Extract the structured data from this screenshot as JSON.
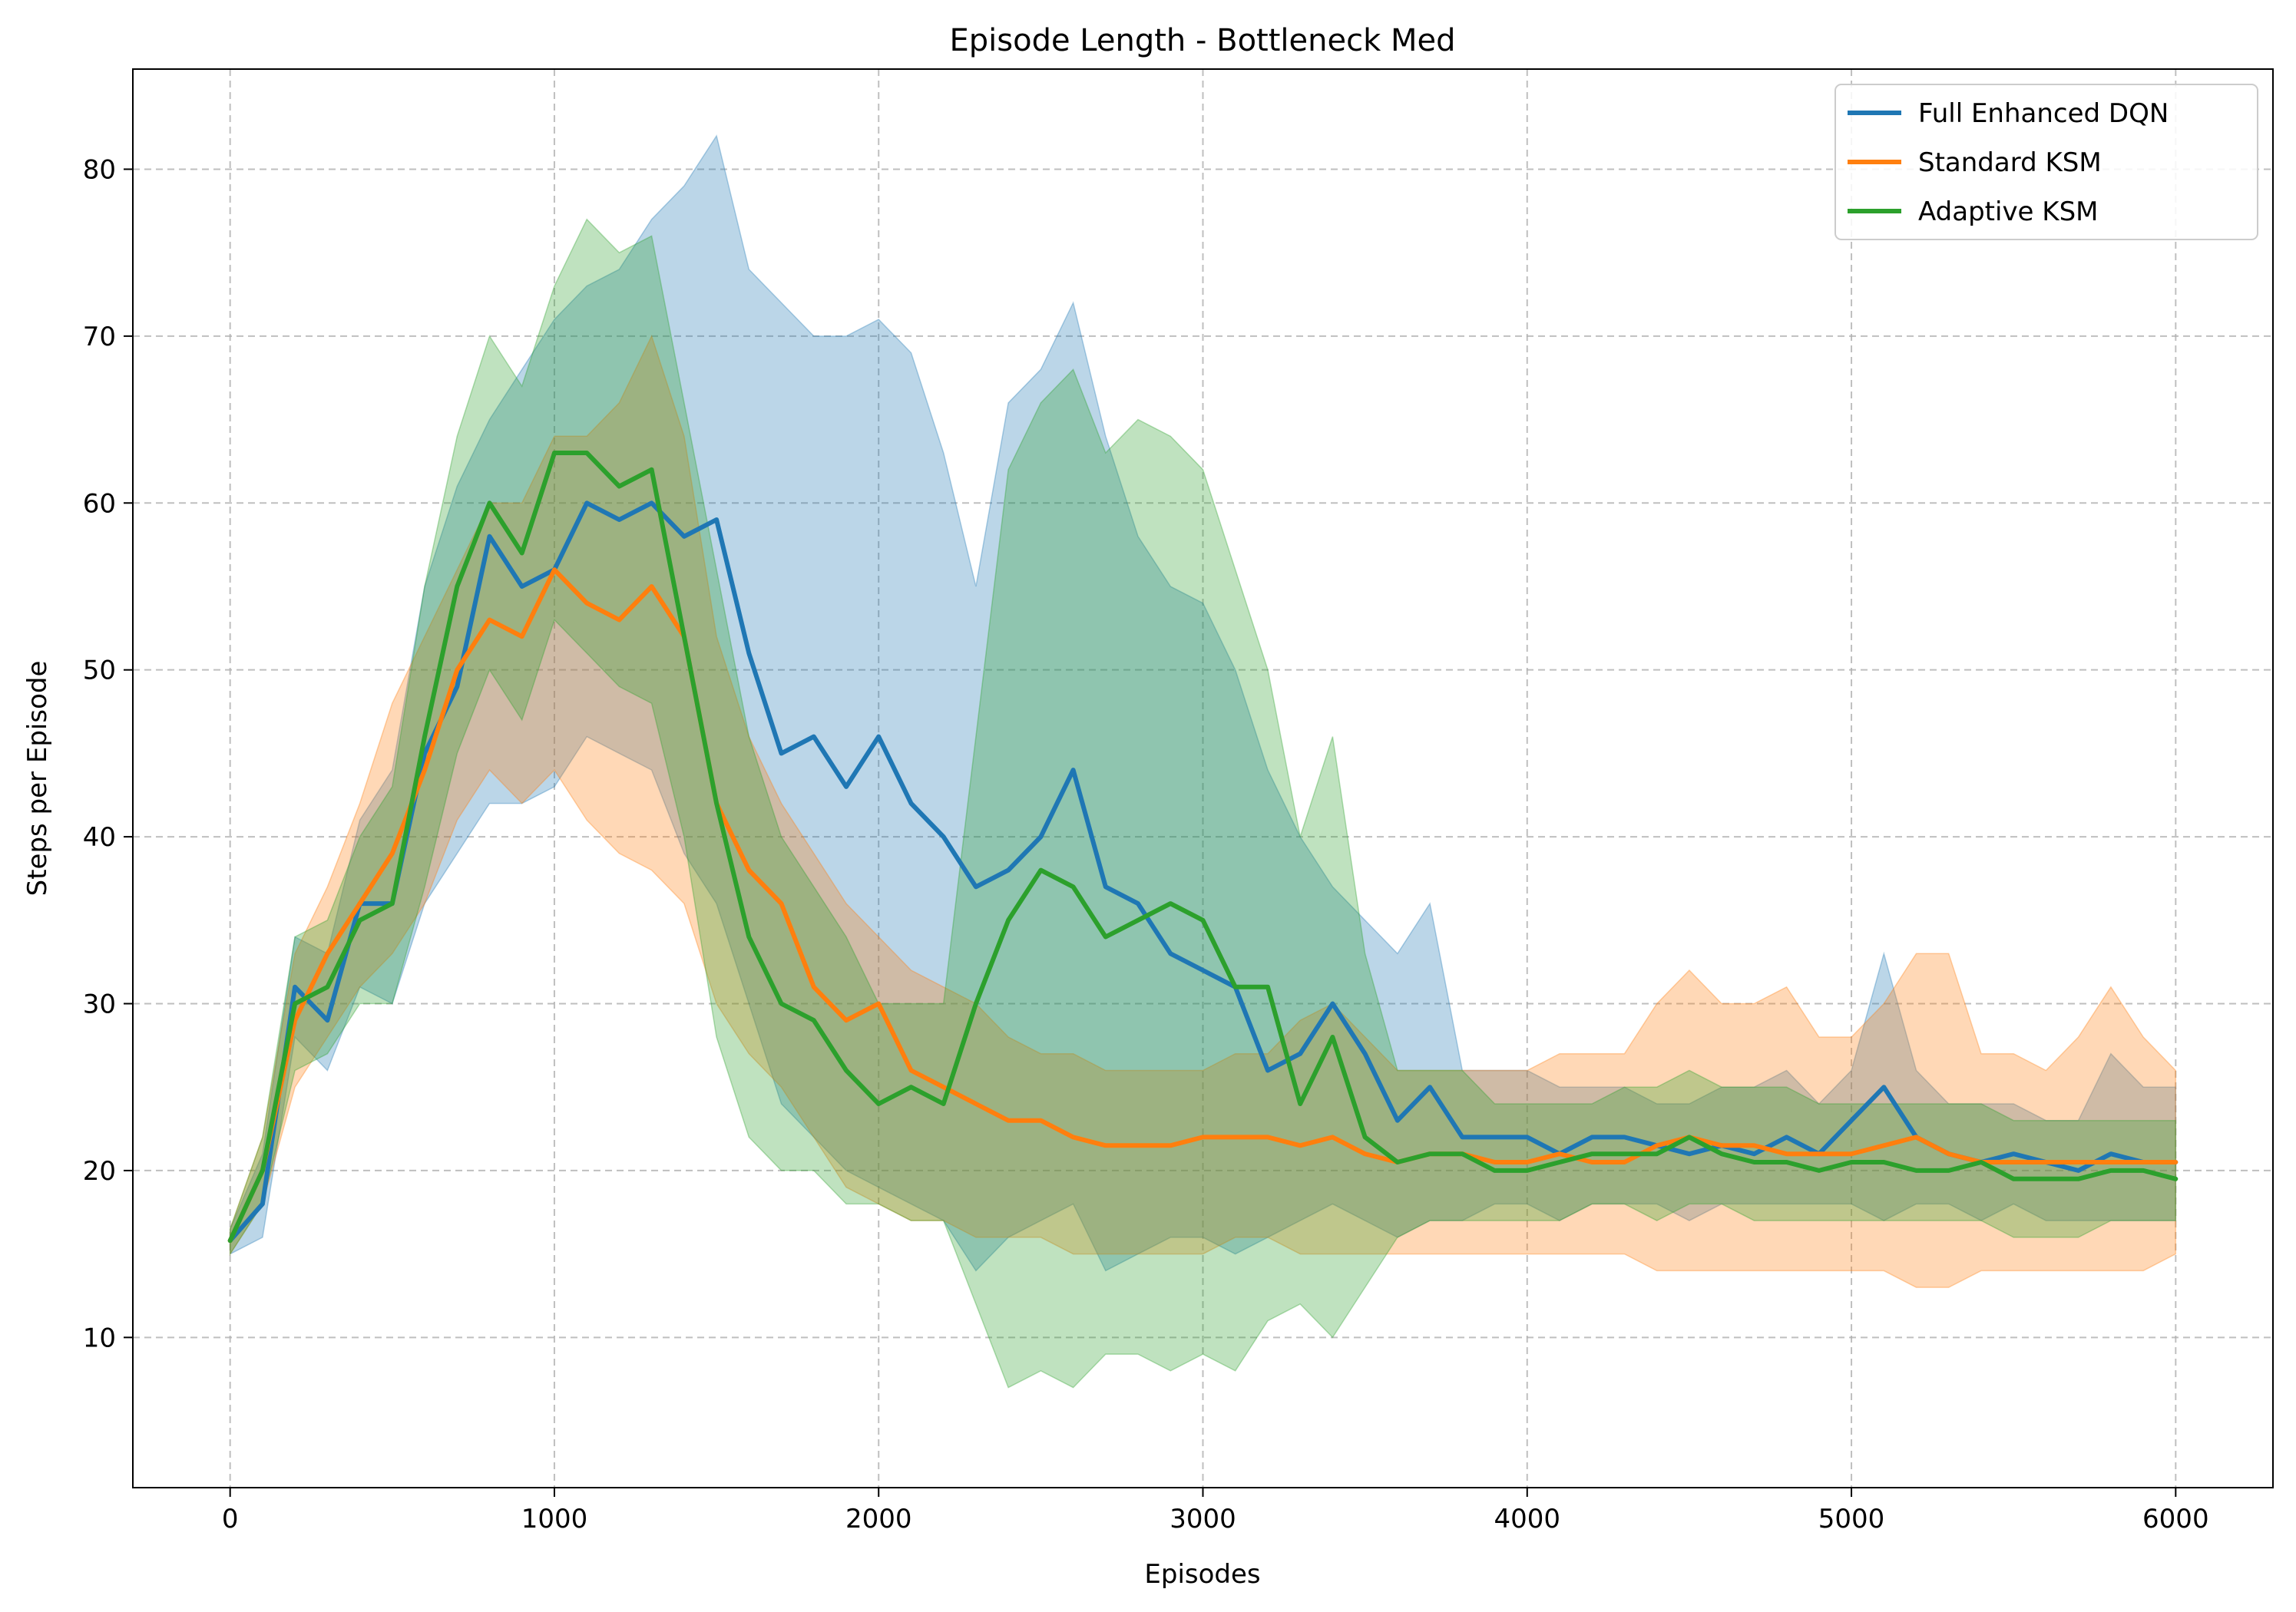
{
  "chart_data": {
    "type": "line",
    "title": "Episode Length - Bottleneck Med",
    "xlabel": "Episodes",
    "ylabel": "Steps per Episode",
    "xlim": [
      -300,
      6300
    ],
    "ylim": [
      1,
      86
    ],
    "xticks": [
      0,
      1000,
      2000,
      3000,
      4000,
      5000,
      6000
    ],
    "yticks": [
      10,
      20,
      30,
      40,
      50,
      60,
      70,
      80
    ],
    "grid": true,
    "legend_position": "top-right",
    "x": [
      0,
      100,
      200,
      300,
      400,
      500,
      600,
      700,
      800,
      900,
      1000,
      1100,
      1200,
      1300,
      1400,
      1500,
      1600,
      1700,
      1800,
      1900,
      2000,
      2100,
      2200,
      2300,
      2400,
      2500,
      2600,
      2700,
      2800,
      2900,
      3000,
      3100,
      3200,
      3300,
      3400,
      3500,
      3600,
      3700,
      3800,
      3900,
      4000,
      4100,
      4200,
      4300,
      4400,
      4500,
      4600,
      4700,
      4800,
      4900,
      5000,
      5100,
      5200,
      5300,
      5400,
      5500,
      5600,
      5700,
      5800,
      5900,
      6000
    ],
    "series": [
      {
        "name": "Full Enhanced DQN",
        "color": "#1f77b4",
        "mean": [
          15.8,
          18,
          31,
          29,
          36,
          36,
          45,
          49,
          58,
          55,
          56,
          60,
          59,
          60,
          58,
          59,
          51,
          45,
          46,
          43,
          46,
          42,
          40,
          37,
          38,
          40,
          44,
          37,
          36,
          33,
          32,
          31,
          26,
          27,
          30,
          27,
          23,
          25,
          22,
          22,
          22,
          21,
          22,
          22,
          21.5,
          21,
          21.5,
          21,
          22,
          21,
          23,
          25,
          22,
          21,
          20.5,
          21,
          20.5,
          20,
          21,
          20.5,
          20.5
        ],
        "upper": [
          16.5,
          21,
          34,
          33,
          41,
          44,
          55,
          61,
          65,
          68,
          71,
          73,
          74,
          77,
          79,
          82,
          74,
          72,
          70,
          70,
          71,
          69,
          63,
          55,
          66,
          68,
          72,
          64,
          58,
          55,
          54,
          50,
          44,
          40,
          37,
          35,
          33,
          36,
          26,
          26,
          26,
          25,
          25,
          25,
          24,
          24,
          25,
          25,
          26,
          24,
          26,
          33,
          26,
          24,
          24,
          24,
          23,
          23,
          27,
          25,
          25
        ],
        "lower": [
          15.0,
          16,
          28,
          26,
          31,
          30,
          36,
          39,
          42,
          42,
          43,
          46,
          45,
          44,
          39,
          36,
          30,
          24,
          22,
          20,
          19,
          18,
          17,
          14,
          16,
          17,
          18,
          14,
          15,
          16,
          16,
          15,
          16,
          17,
          18,
          17,
          16,
          17,
          17,
          18,
          18,
          17,
          18,
          18,
          18,
          17,
          18,
          18,
          18,
          18,
          18,
          17,
          18,
          18,
          17,
          18,
          17,
          17,
          17,
          17,
          17
        ]
      },
      {
        "name": "Standard KSM",
        "color": "#ff7f0e",
        "mean": [
          15.8,
          20,
          29,
          33,
          36,
          39,
          44,
          50,
          53,
          52,
          56,
          54,
          53,
          55,
          52,
          42,
          38,
          36,
          31,
          29,
          30,
          26,
          25,
          24,
          23,
          23,
          22,
          21.5,
          21.5,
          21.5,
          22,
          22,
          22,
          21.5,
          22,
          21,
          20.5,
          21,
          21,
          20.5,
          20.5,
          21,
          20.5,
          20.5,
          21.5,
          22,
          21.5,
          21.5,
          21,
          21,
          21,
          21.5,
          22,
          21,
          20.5,
          20.5,
          20.5,
          20.5,
          20.5,
          20.5,
          20.5
        ],
        "upper": [
          16.5,
          22,
          33,
          37,
          42,
          48,
          52,
          56,
          60,
          60,
          64,
          64,
          66,
          70,
          64,
          52,
          46,
          42,
          39,
          36,
          34,
          32,
          31,
          30,
          28,
          27,
          27,
          26,
          26,
          26,
          26,
          27,
          27,
          29,
          30,
          28,
          26,
          26,
          26,
          26,
          26,
          27,
          27,
          27,
          30,
          32,
          30,
          30,
          31,
          28,
          28,
          30,
          33,
          33,
          27,
          27,
          26,
          28,
          31,
          28,
          26
        ],
        "lower": [
          15.0,
          18,
          25,
          28,
          31,
          33,
          36,
          41,
          44,
          42,
          44,
          41,
          39,
          38,
          36,
          30,
          27,
          25,
          22,
          19,
          18,
          17,
          17,
          16,
          16,
          16,
          15,
          15,
          15,
          15,
          15,
          16,
          16,
          15,
          15,
          15,
          15,
          15,
          15,
          15,
          15,
          15,
          15,
          15,
          14,
          14,
          14,
          14,
          14,
          14,
          14,
          14,
          13,
          13,
          14,
          14,
          14,
          14,
          14,
          14,
          15
        ]
      },
      {
        "name": "Adaptive KSM",
        "color": "#2ca02c",
        "mean": [
          15.8,
          20,
          30,
          31,
          35,
          36,
          46,
          55,
          60,
          57,
          63,
          63,
          61,
          62,
          52,
          42,
          34,
          30,
          29,
          26,
          24,
          25,
          24,
          30,
          35,
          38,
          37,
          34,
          35,
          36,
          35,
          31,
          31,
          24,
          28,
          22,
          20.5,
          21,
          21,
          20,
          20,
          20.5,
          21,
          21,
          21,
          22,
          21,
          20.5,
          20.5,
          20,
          20.5,
          20.5,
          20,
          20,
          20.5,
          19.5,
          19.5,
          19.5,
          20,
          20,
          19.5
        ],
        "upper": [
          16.5,
          22,
          34,
          35,
          40,
          43,
          55,
          64,
          70,
          67,
          73,
          77,
          75,
          76,
          66,
          56,
          46,
          40,
          37,
          34,
          30,
          30,
          30,
          46,
          62,
          66,
          68,
          63,
          65,
          64,
          62,
          56,
          50,
          40,
          46,
          33,
          26,
          26,
          26,
          24,
          24,
          24,
          24,
          25,
          25,
          26,
          25,
          25,
          25,
          24,
          24,
          24,
          24,
          24,
          24,
          23,
          23,
          23,
          23,
          23,
          23
        ],
        "lower": [
          15.0,
          18,
          26,
          27,
          30,
          30,
          37,
          45,
          50,
          47,
          53,
          51,
          49,
          48,
          40,
          28,
          22,
          20,
          20,
          18,
          18,
          17,
          17,
          12,
          7,
          8,
          7,
          9,
          9,
          8,
          9,
          8,
          11,
          12,
          10,
          13,
          16,
          17,
          17,
          17,
          17,
          17,
          18,
          18,
          17,
          18,
          18,
          17,
          17,
          17,
          17,
          17,
          17,
          17,
          17,
          16,
          16,
          16,
          17,
          17,
          17
        ]
      }
    ]
  }
}
